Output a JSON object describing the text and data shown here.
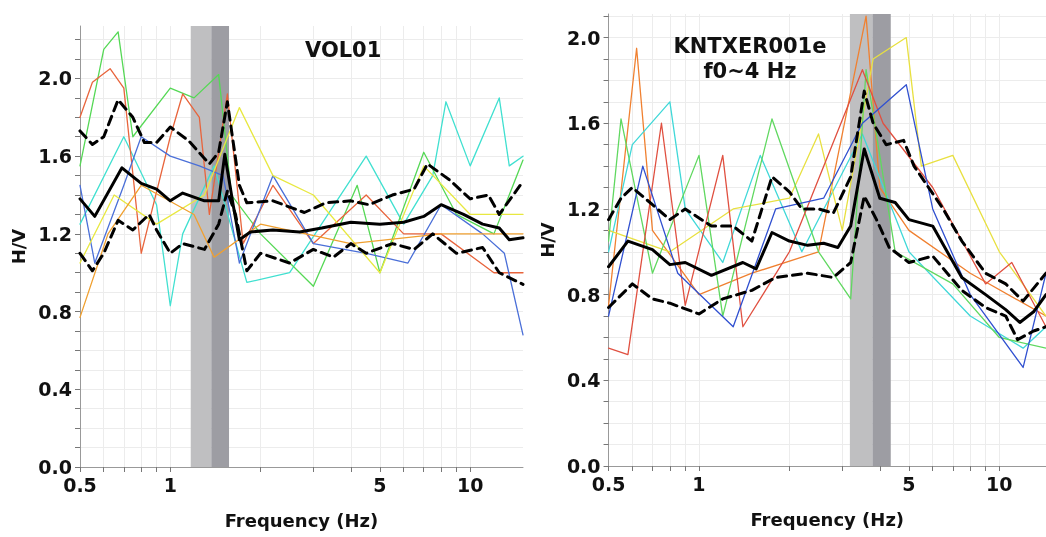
{
  "chart_data": [
    {
      "type": "line",
      "title": "VOL01",
      "xlabel": "Frequency (Hz)",
      "ylabel": "H/V",
      "log": "x",
      "grid": true,
      "marker": "none",
      "xlim": [
        0.5,
        15
      ],
      "ylim": [
        0,
        2.27
      ],
      "xticks": [
        {
          "value": 0.5,
          "label": "0.5"
        },
        {
          "value": 0.6,
          "label": null
        },
        {
          "value": 0.7,
          "label": null
        },
        {
          "value": 0.8,
          "label": null
        },
        {
          "value": 0.9,
          "label": null
        },
        1,
        {
          "value": 2,
          "label": null
        },
        {
          "value": 3,
          "label": null
        },
        {
          "value": 4,
          "label": null
        },
        5,
        {
          "value": 6,
          "label": null
        },
        {
          "value": 7,
          "label": null
        },
        {
          "value": 8,
          "label": null
        },
        {
          "value": 9,
          "label": null
        },
        10
      ],
      "yticks": [
        {
          "value": 0,
          "label": "0.0"
        },
        {
          "value": 0.1,
          "label": null
        },
        {
          "value": 0.2,
          "label": null
        },
        {
          "value": 0.3,
          "label": null
        },
        0.4,
        {
          "value": 0.5,
          "label": null
        },
        {
          "value": 0.6,
          "label": null
        },
        {
          "value": 0.7,
          "label": null
        },
        0.8,
        {
          "value": 0.9,
          "label": null
        },
        {
          "value": 1.0,
          "label": null
        },
        {
          "value": 1.1,
          "label": null
        },
        1.2,
        {
          "value": 1.3,
          "label": null
        },
        {
          "value": 1.4,
          "label": null
        },
        {
          "value": 1.5,
          "label": null
        },
        1.6,
        {
          "value": 1.7,
          "label": null
        },
        {
          "value": 1.8,
          "label": null
        },
        {
          "value": 1.9,
          "label": null
        },
        {
          "value": 2.0,
          "label": "2.0"
        },
        {
          "value": 2.1,
          "label": null
        },
        {
          "value": 2.2,
          "label": null
        }
      ],
      "bands": [
        {
          "axis": "x",
          "from": 1.17,
          "to": 1.37,
          "color": "#bfbfc1"
        },
        {
          "axis": "x",
          "from": 1.37,
          "to": 1.57,
          "color": "#9d9da3"
        }
      ],
      "series": [
        {
          "color": "#40e0d0",
          "x": [
            0.5,
            0.7,
            0.9,
            1.0,
            1.1,
            1.4,
            1.8,
            2.5,
            4.5,
            6,
            7.5,
            8.3,
            10,
            12.5,
            13.5,
            15
          ],
          "values": [
            1.25,
            1.7,
            1.35,
            0.83,
            1.2,
            1.55,
            0.95,
            1.0,
            1.6,
            1.25,
            1.5,
            1.88,
            1.55,
            1.9,
            1.55,
            1.6
          ]
        },
        {
          "color": "#55d855",
          "x": [
            0.5,
            0.6,
            0.67,
            0.75,
            1.0,
            1.2,
            1.45,
            1.6,
            2.0,
            3.0,
            4.2,
            5,
            7,
            9,
            12,
            15
          ],
          "values": [
            1.55,
            2.15,
            2.24,
            1.7,
            1.95,
            1.9,
            2.02,
            1.4,
            1.2,
            0.93,
            1.45,
            1.0,
            1.62,
            1.3,
            1.2,
            1.58
          ]
        },
        {
          "color": "#e8643c",
          "x": [
            0.5,
            0.55,
            0.63,
            0.7,
            0.8,
            1.0,
            1.1,
            1.25,
            1.35,
            1.55,
            1.75,
            2.2,
            3,
            4.5,
            6,
            8,
            12,
            15
          ],
          "values": [
            1.8,
            1.98,
            2.05,
            1.95,
            1.1,
            1.7,
            1.92,
            1.8,
            1.3,
            1.92,
            1.15,
            1.45,
            1.15,
            1.4,
            1.2,
            1.2,
            1.0,
            1.0
          ]
        },
        {
          "color": "#4a6fd8",
          "x": [
            0.5,
            0.56,
            0.7,
            0.8,
            1.0,
            1.25,
            1.5,
            1.7,
            2.2,
            3,
            4.5,
            6.2,
            8,
            11,
            13,
            15
          ],
          "values": [
            1.45,
            1.05,
            1.45,
            1.7,
            1.6,
            1.55,
            1.5,
            1.05,
            1.5,
            1.15,
            1.1,
            1.05,
            1.35,
            1.2,
            1.1,
            0.68
          ]
        },
        {
          "color": "#e8e840",
          "x": [
            0.5,
            0.65,
            0.9,
            1.3,
            1.7,
            2.2,
            3,
            5,
            7,
            10,
            15
          ],
          "values": [
            1.05,
            1.4,
            1.25,
            1.4,
            1.85,
            1.5,
            1.4,
            1.0,
            1.55,
            1.3,
            1.3
          ]
        },
        {
          "color": "#f0a030",
          "x": [
            0.5,
            0.62,
            0.8,
            1.2,
            1.4,
            2,
            4,
            8,
            15
          ],
          "values": [
            0.77,
            1.2,
            1.45,
            1.3,
            1.08,
            1.25,
            1.15,
            1.2,
            1.2
          ]
        },
        {
          "color": "#000000",
          "line_style": "solid",
          "x": [
            0.5,
            0.56,
            0.69,
            0.8,
            0.9,
            1.0,
            1.1,
            1.3,
            1.45,
            1.52,
            1.62,
            1.7,
            1.85,
            2.2,
            2.7,
            3.2,
            4.0,
            5,
            6,
            7,
            8.0,
            9.5,
            11,
            12.5,
            13.5,
            15
          ],
          "values": [
            1.38,
            1.29,
            1.54,
            1.46,
            1.43,
            1.37,
            1.41,
            1.37,
            1.37,
            1.61,
            1.35,
            1.17,
            1.21,
            1.22,
            1.21,
            1.23,
            1.26,
            1.25,
            1.26,
            1.29,
            1.35,
            1.3,
            1.25,
            1.23,
            1.17,
            1.18
          ]
        },
        {
          "color": "#000000",
          "line_style": "dashed",
          "x": [
            0.5,
            0.55,
            0.6,
            0.67,
            0.75,
            0.82,
            0.9,
            1.0,
            1.15,
            1.35,
            1.45,
            1.55,
            1.7,
            1.8,
            2.2,
            2.8,
            3.3,
            4.0,
            4.6,
            5.5,
            6.5,
            7.2,
            8.5,
            10,
            11.5,
            12.5,
            15
          ],
          "values": [
            1.73,
            1.66,
            1.7,
            1.89,
            1.8,
            1.67,
            1.67,
            1.75,
            1.68,
            1.56,
            1.62,
            1.88,
            1.45,
            1.36,
            1.37,
            1.31,
            1.36,
            1.37,
            1.35,
            1.4,
            1.43,
            1.56,
            1.48,
            1.38,
            1.4,
            1.3,
            1.47
          ]
        },
        {
          "color": "#000000",
          "line_style": "dashed",
          "x": [
            0.5,
            0.55,
            0.6,
            0.67,
            0.75,
            0.85,
            0.9,
            1.0,
            1.1,
            1.3,
            1.45,
            1.55,
            1.65,
            1.8,
            2.0,
            2.5,
            3.0,
            3.5,
            4.0,
            4.5,
            5.5,
            6.5,
            7.5,
            9,
            11,
            12.5,
            15
          ],
          "values": [
            1.1,
            1.01,
            1.1,
            1.27,
            1.22,
            1.3,
            1.22,
            1.1,
            1.15,
            1.12,
            1.25,
            1.42,
            1.3,
            1.01,
            1.1,
            1.05,
            1.12,
            1.08,
            1.15,
            1.1,
            1.15,
            1.12,
            1.2,
            1.1,
            1.13,
            1.0,
            0.94
          ]
        }
      ]
    },
    {
      "type": "line",
      "title": "KNTXER001e",
      "subtitle": "f0~4 Hz",
      "xlabel": "Frequency (Hz)",
      "ylabel": "H/V",
      "log": "x",
      "grid": true,
      "marker": "none",
      "xlim": [
        0.5,
        14.3
      ],
      "ylim": [
        0,
        2.11
      ],
      "xticks": [
        {
          "value": 0.5,
          "label": "0.5"
        },
        {
          "value": 0.6,
          "label": null
        },
        {
          "value": 0.7,
          "label": null
        },
        {
          "value": 0.8,
          "label": null
        },
        {
          "value": 0.9,
          "label": null
        },
        1,
        {
          "value": 2,
          "label": null
        },
        {
          "value": 3,
          "label": null
        },
        {
          "value": 4,
          "label": null
        },
        5,
        {
          "value": 6,
          "label": null
        },
        {
          "value": 7,
          "label": null
        },
        {
          "value": 8,
          "label": null
        },
        {
          "value": 9,
          "label": null
        },
        10
      ],
      "yticks": [
        {
          "value": 0,
          "label": "0.0"
        },
        {
          "value": 0.1,
          "label": null
        },
        {
          "value": 0.2,
          "label": null
        },
        {
          "value": 0.3,
          "label": null
        },
        0.4,
        {
          "value": 0.5,
          "label": null
        },
        {
          "value": 0.6,
          "label": null
        },
        {
          "value": 0.7,
          "label": null
        },
        0.8,
        {
          "value": 0.9,
          "label": null
        },
        {
          "value": 1.0,
          "label": null
        },
        {
          "value": 1.1,
          "label": null
        },
        1.2,
        {
          "value": 1.3,
          "label": null
        },
        {
          "value": 1.4,
          "label": null
        },
        {
          "value": 1.5,
          "label": null
        },
        1.6,
        {
          "value": 1.7,
          "label": null
        },
        {
          "value": 1.8,
          "label": null
        },
        {
          "value": 1.9,
          "label": null
        },
        {
          "value": 2.0,
          "label": "2.0"
        },
        {
          "value": 2.1,
          "label": null
        }
      ],
      "bands": [
        {
          "axis": "x",
          "from": 3.18,
          "to": 3.78,
          "color": "#bfbfc1"
        },
        {
          "axis": "x",
          "from": 3.78,
          "to": 4.35,
          "color": "#9d9da3"
        }
      ],
      "series": [
        {
          "color": "#f08030",
          "x": [
            0.5,
            0.62,
            0.7,
            1.0,
            1.5,
            2.5,
            3.6,
            4,
            5,
            8,
            14.3
          ],
          "values": [
            0.75,
            1.95,
            1.1,
            0.8,
            0.9,
            1.0,
            2.1,
            1.3,
            1.1,
            0.9,
            0.7
          ]
        },
        {
          "color": "#40d8d8",
          "x": [
            0.5,
            0.6,
            0.8,
            0.9,
            1.2,
            1.6,
            2.2,
            3.5,
            5,
            8,
            12,
            14.3
          ],
          "values": [
            1.0,
            1.5,
            1.7,
            1.2,
            0.95,
            1.45,
            1.0,
            1.55,
            1.0,
            0.7,
            0.55,
            0.65
          ]
        },
        {
          "color": "#e8e040",
          "x": [
            0.5,
            0.8,
            1.3,
            2.0,
            2.5,
            3.0,
            3.8,
            4.9,
            5.5,
            7,
            10,
            14.3
          ],
          "values": [
            1.1,
            1.0,
            1.2,
            1.25,
            1.55,
            1.1,
            1.9,
            2.0,
            1.4,
            1.45,
            1.0,
            0.7
          ]
        },
        {
          "color": "#60d860",
          "x": [
            0.5,
            0.55,
            0.7,
            1.0,
            1.2,
            1.75,
            2.5,
            3.2,
            3.6,
            4.5,
            7,
            10,
            14.3
          ],
          "values": [
            1.05,
            1.62,
            0.9,
            1.45,
            0.7,
            1.62,
            1.0,
            0.78,
            1.85,
            1.0,
            0.85,
            0.6,
            0.55
          ]
        },
        {
          "color": "#e05040",
          "x": [
            0.5,
            0.58,
            0.75,
            0.9,
            1.2,
            1.4,
            2,
            3.5,
            4.1,
            6,
            9,
            11,
            14.3
          ],
          "values": [
            0.55,
            0.52,
            1.6,
            0.75,
            1.45,
            0.65,
            1.0,
            1.85,
            1.6,
            1.3,
            0.85,
            0.95,
            0.65
          ]
        },
        {
          "color": "#3050d0",
          "x": [
            0.5,
            0.65,
            0.85,
            1.3,
            1.8,
            2.6,
            3.5,
            4.9,
            6,
            8,
            12,
            14.3
          ],
          "values": [
            0.7,
            1.4,
            0.9,
            0.65,
            1.2,
            1.25,
            1.6,
            1.78,
            1.2,
            0.8,
            0.46,
            0.9
          ]
        },
        {
          "color": "#000000",
          "line_style": "solid",
          "x": [
            0.5,
            0.58,
            0.7,
            0.8,
            0.9,
            1.1,
            1.4,
            1.55,
            1.75,
            2.0,
            2.3,
            2.6,
            2.9,
            3.2,
            3.55,
            4.0,
            4.5,
            5,
            6.0,
            7.5,
            9,
            10.5,
            11.7,
            13,
            14.3
          ],
          "values": [
            0.93,
            1.05,
            1.01,
            0.94,
            0.95,
            0.89,
            0.95,
            0.92,
            1.09,
            1.05,
            1.03,
            1.04,
            1.02,
            1.12,
            1.48,
            1.25,
            1.23,
            1.15,
            1.12,
            0.88,
            0.8,
            0.73,
            0.67,
            0.72,
            0.8
          ]
        },
        {
          "color": "#000000",
          "line_style": "dashed",
          "x": [
            0.5,
            0.55,
            0.6,
            0.7,
            0.8,
            0.9,
            1.1,
            1.3,
            1.5,
            1.75,
            2.0,
            2.2,
            2.5,
            2.8,
            3.2,
            3.55,
            3.8,
            4.2,
            4.8,
            5.2,
            6.5,
            7.5,
            9,
            10.5,
            12,
            14.3
          ],
          "values": [
            1.15,
            1.25,
            1.3,
            1.22,
            1.15,
            1.2,
            1.12,
            1.12,
            1.05,
            1.35,
            1.28,
            1.2,
            1.2,
            1.18,
            1.35,
            1.75,
            1.6,
            1.5,
            1.52,
            1.4,
            1.2,
            1.05,
            0.9,
            0.85,
            0.77,
            0.9
          ]
        },
        {
          "color": "#000000",
          "line_style": "dashed",
          "x": [
            0.5,
            0.6,
            0.7,
            0.8,
            1.0,
            1.2,
            1.5,
            1.8,
            2.3,
            2.8,
            3.2,
            3.55,
            3.9,
            4.3,
            5,
            6.0,
            7.5,
            9,
            10.5,
            11.5,
            13,
            14.3
          ],
          "values": [
            0.74,
            0.85,
            0.78,
            0.76,
            0.71,
            0.78,
            0.82,
            0.88,
            0.9,
            0.88,
            0.95,
            1.26,
            1.15,
            1.02,
            0.95,
            0.98,
            0.82,
            0.74,
            0.7,
            0.59,
            0.63,
            0.65
          ]
        }
      ]
    }
  ]
}
